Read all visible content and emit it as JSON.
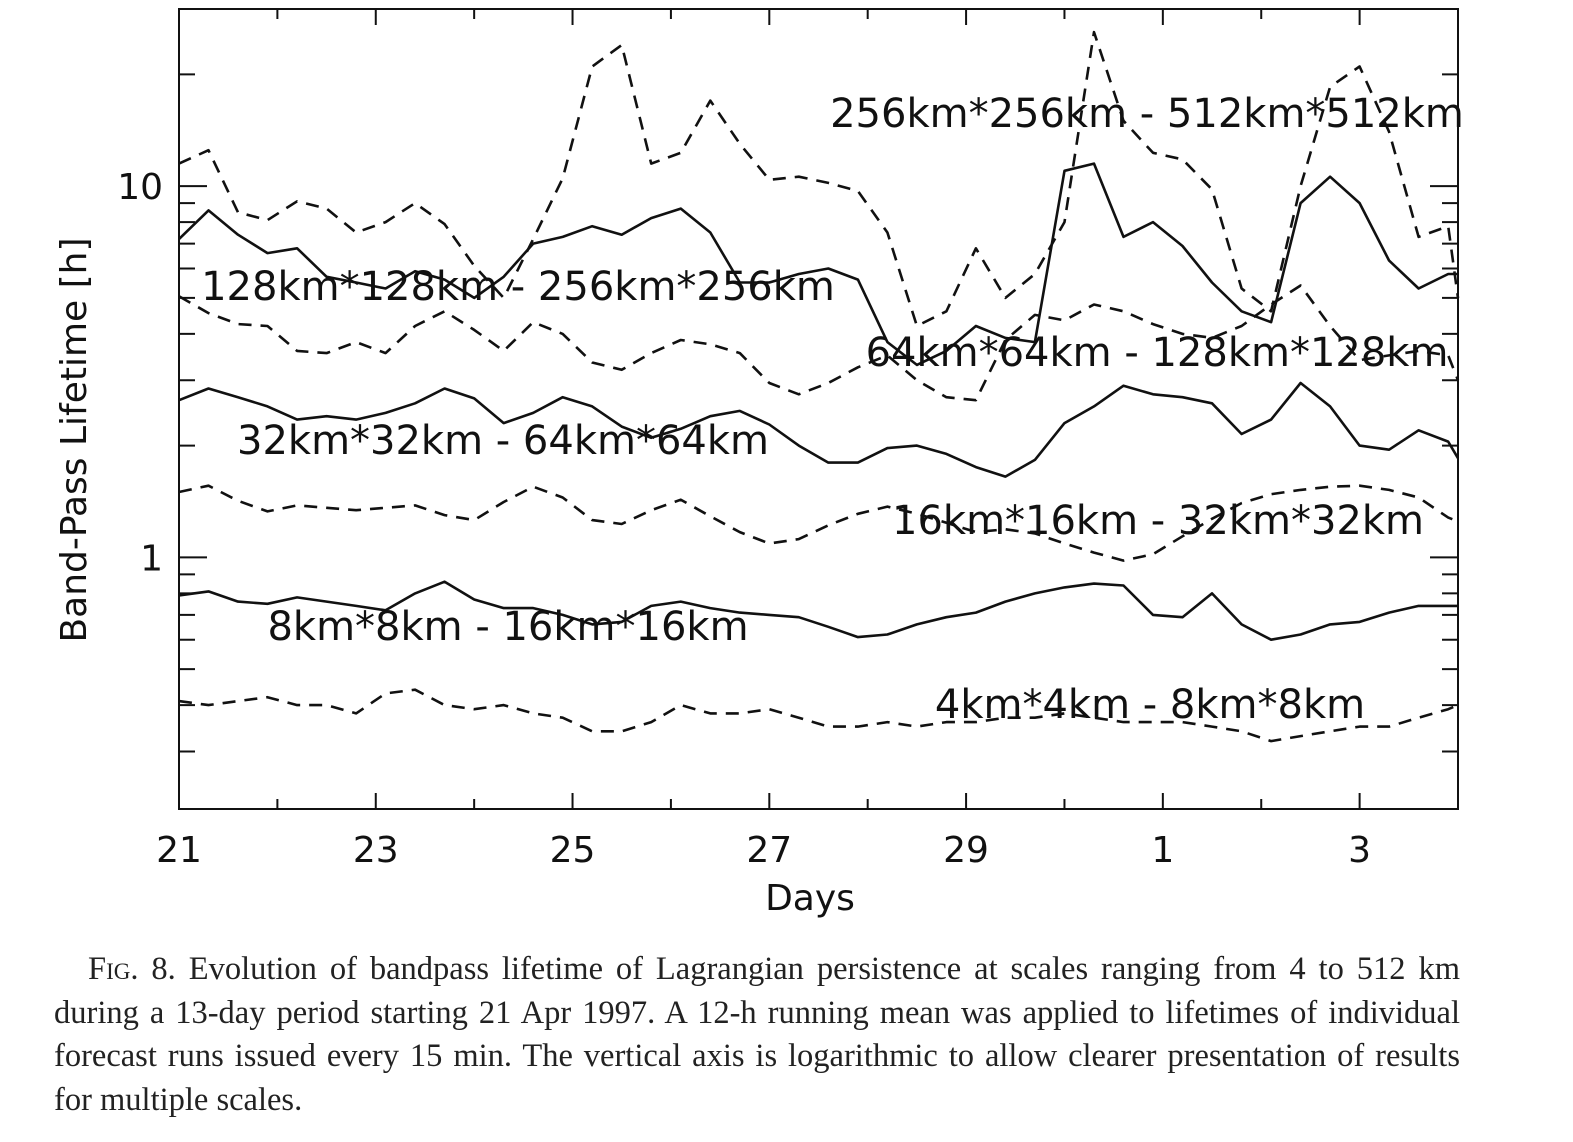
{
  "chart_data": {
    "type": "line",
    "xlabel": "Days",
    "ylabel": "Band-Pass Lifetime [h]",
    "yscale": "log",
    "ylim": [
      0.21,
      30
    ],
    "xlim": [
      0,
      13
    ],
    "x_ticks": [
      {
        "x": 0,
        "label": "21"
      },
      {
        "x": 2,
        "label": "23"
      },
      {
        "x": 4,
        "label": "25"
      },
      {
        "x": 6,
        "label": "27"
      },
      {
        "x": 8,
        "label": "29"
      },
      {
        "x": 10,
        "label": "1"
      },
      {
        "x": 12,
        "label": "3"
      }
    ],
    "y_ticks": [
      {
        "y": 1,
        "label": "1"
      },
      {
        "y": 10,
        "label": "10"
      }
    ],
    "legend_position": "inline labels next to curves",
    "grid": false,
    "series": [
      {
        "name": "4km*4km - 8km*8km",
        "style": "dashed",
        "x": [
          0,
          0.3,
          0.6,
          0.9,
          1.2,
          1.5,
          1.8,
          2.1,
          2.4,
          2.7,
          3.0,
          3.3,
          3.6,
          3.9,
          4.2,
          4.5,
          4.8,
          5.1,
          5.4,
          5.7,
          6.0,
          6.3,
          6.6,
          6.9,
          7.2,
          7.5,
          7.8,
          8.1,
          8.4,
          8.7,
          9.0,
          9.3,
          9.6,
          9.9,
          10.2,
          10.5,
          10.8,
          11.1,
          11.4,
          11.7,
          12.0,
          12.3,
          12.6,
          12.9,
          13.0
        ],
        "y": [
          0.41,
          0.4,
          0.41,
          0.42,
          0.4,
          0.4,
          0.38,
          0.43,
          0.44,
          0.4,
          0.39,
          0.4,
          0.38,
          0.37,
          0.34,
          0.34,
          0.36,
          0.4,
          0.38,
          0.38,
          0.39,
          0.37,
          0.35,
          0.35,
          0.36,
          0.35,
          0.36,
          0.36,
          0.37,
          0.37,
          0.38,
          0.37,
          0.36,
          0.36,
          0.36,
          0.35,
          0.34,
          0.32,
          0.33,
          0.34,
          0.35,
          0.35,
          0.37,
          0.39,
          0.4
        ]
      },
      {
        "name": "8km*8km - 16km*16km",
        "style": "solid",
        "x": [
          0,
          0.3,
          0.6,
          0.9,
          1.2,
          1.5,
          1.8,
          2.1,
          2.4,
          2.7,
          3.0,
          3.3,
          3.6,
          3.9,
          4.2,
          4.5,
          4.8,
          5.1,
          5.4,
          5.7,
          6.0,
          6.3,
          6.6,
          6.9,
          7.2,
          7.5,
          7.8,
          8.1,
          8.4,
          8.7,
          9.0,
          9.3,
          9.6,
          9.9,
          10.2,
          10.5,
          10.8,
          11.1,
          11.4,
          11.7,
          12.0,
          12.3,
          12.6,
          12.9,
          13.0
        ],
        "y": [
          0.79,
          0.81,
          0.76,
          0.75,
          0.78,
          0.76,
          0.74,
          0.72,
          0.8,
          0.86,
          0.77,
          0.73,
          0.73,
          0.7,
          0.66,
          0.67,
          0.74,
          0.76,
          0.73,
          0.71,
          0.7,
          0.69,
          0.65,
          0.61,
          0.62,
          0.66,
          0.69,
          0.71,
          0.76,
          0.8,
          0.83,
          0.85,
          0.84,
          0.7,
          0.69,
          0.8,
          0.66,
          0.6,
          0.62,
          0.66,
          0.67,
          0.71,
          0.74,
          0.74,
          0.74
        ]
      },
      {
        "name": "16km*16km - 32km*32km",
        "style": "dashed",
        "x": [
          0,
          0.3,
          0.6,
          0.9,
          1.2,
          1.5,
          1.8,
          2.1,
          2.4,
          2.7,
          3.0,
          3.3,
          3.6,
          3.9,
          4.2,
          4.5,
          4.8,
          5.1,
          5.4,
          5.7,
          6.0,
          6.3,
          6.6,
          6.9,
          7.2,
          7.5,
          7.8,
          8.1,
          8.4,
          8.7,
          9.0,
          9.3,
          9.6,
          9.9,
          10.2,
          10.5,
          10.8,
          11.1,
          11.4,
          11.7,
          12.0,
          12.3,
          12.6,
          12.9,
          13.0
        ],
        "y": [
          1.5,
          1.56,
          1.42,
          1.33,
          1.38,
          1.36,
          1.34,
          1.36,
          1.38,
          1.3,
          1.26,
          1.41,
          1.55,
          1.45,
          1.26,
          1.23,
          1.34,
          1.43,
          1.29,
          1.17,
          1.09,
          1.12,
          1.22,
          1.31,
          1.37,
          1.31,
          1.24,
          1.17,
          1.19,
          1.16,
          1.09,
          1.03,
          0.98,
          1.02,
          1.14,
          1.27,
          1.4,
          1.48,
          1.52,
          1.55,
          1.56,
          1.52,
          1.45,
          1.28,
          1.25
        ]
      },
      {
        "name": "32km*32km - 64km*64km",
        "style": "solid",
        "x": [
          0,
          0.3,
          0.6,
          0.9,
          1.2,
          1.5,
          1.8,
          2.1,
          2.4,
          2.7,
          3.0,
          3.3,
          3.6,
          3.9,
          4.2,
          4.5,
          4.8,
          5.1,
          5.4,
          5.7,
          6.0,
          6.3,
          6.6,
          6.9,
          7.2,
          7.5,
          7.8,
          8.1,
          8.4,
          8.7,
          9.0,
          9.3,
          9.6,
          9.9,
          10.2,
          10.5,
          10.8,
          11.1,
          11.4,
          11.7,
          12.0,
          12.3,
          12.6,
          12.9,
          13.0
        ],
        "y": [
          2.65,
          2.85,
          2.7,
          2.55,
          2.35,
          2.4,
          2.35,
          2.45,
          2.6,
          2.85,
          2.68,
          2.3,
          2.45,
          2.7,
          2.55,
          2.25,
          2.1,
          2.22,
          2.4,
          2.48,
          2.28,
          2.0,
          1.8,
          1.8,
          1.97,
          2.0,
          1.9,
          1.75,
          1.65,
          1.83,
          2.3,
          2.55,
          2.9,
          2.75,
          2.7,
          2.6,
          2.15,
          2.35,
          2.95,
          2.55,
          2.0,
          1.95,
          2.2,
          2.05,
          1.85
        ]
      },
      {
        "name": "64km*64km - 128km*128km",
        "style": "dashed",
        "x": [
          0,
          0.3,
          0.6,
          0.9,
          1.2,
          1.5,
          1.8,
          2.1,
          2.4,
          2.7,
          3.0,
          3.3,
          3.6,
          3.9,
          4.2,
          4.5,
          4.8,
          5.1,
          5.4,
          5.7,
          6.0,
          6.3,
          6.6,
          6.9,
          7.2,
          7.5,
          7.8,
          8.1,
          8.4,
          8.7,
          9.0,
          9.3,
          9.6,
          9.9,
          10.2,
          10.5,
          10.8,
          11.1,
          11.4,
          11.7,
          12.0,
          12.3,
          12.6,
          12.9,
          13.0
        ],
        "y": [
          5.05,
          4.55,
          4.25,
          4.2,
          3.6,
          3.55,
          3.8,
          3.55,
          4.2,
          4.6,
          4.1,
          3.6,
          4.3,
          4.0,
          3.35,
          3.2,
          3.55,
          3.85,
          3.75,
          3.55,
          2.95,
          2.75,
          2.95,
          3.25,
          3.5,
          3.0,
          2.7,
          2.65,
          3.85,
          4.5,
          4.35,
          4.8,
          4.6,
          4.25,
          4.0,
          3.9,
          4.2,
          4.8,
          5.4,
          4.2,
          3.4,
          3.5,
          3.6,
          3.5,
          3.0
        ]
      },
      {
        "name": "128km*128km - 256km*256km",
        "style": "solid",
        "x": [
          0,
          0.3,
          0.6,
          0.9,
          1.2,
          1.5,
          1.8,
          2.1,
          2.4,
          2.7,
          3.0,
          3.3,
          3.6,
          3.9,
          4.2,
          4.5,
          4.8,
          5.1,
          5.4,
          5.7,
          6.0,
          6.3,
          6.6,
          6.9,
          7.2,
          7.5,
          7.8,
          8.1,
          8.4,
          8.7,
          9.0,
          9.3,
          9.6,
          9.9,
          10.2,
          10.5,
          10.8,
          11.1,
          11.4,
          11.7,
          12.0,
          12.3,
          12.6,
          12.9,
          13.0
        ],
        "y": [
          7.2,
          8.6,
          7.4,
          6.6,
          6.8,
          5.7,
          5.5,
          5.3,
          5.9,
          5.6,
          5.0,
          5.7,
          7.0,
          7.3,
          7.8,
          7.4,
          8.2,
          8.7,
          7.5,
          5.5,
          5.5,
          5.8,
          6.0,
          5.6,
          3.8,
          3.3,
          3.6,
          4.2,
          3.9,
          3.8,
          11.0,
          11.5,
          7.3,
          8.0,
          6.9,
          5.5,
          4.6,
          4.3,
          9.0,
          10.6,
          9.0,
          6.3,
          5.3,
          5.8,
          5.8
        ]
      },
      {
        "name": "256km*256km - 512km*512km",
        "style": "dashed",
        "x": [
          0,
          0.3,
          0.6,
          0.9,
          1.2,
          1.5,
          1.8,
          2.1,
          2.4,
          2.7,
          3.0,
          3.3,
          3.6,
          3.9,
          4.2,
          4.5,
          4.8,
          5.1,
          5.4,
          5.7,
          6.0,
          6.3,
          6.6,
          6.9,
          7.2,
          7.5,
          7.8,
          8.1,
          8.4,
          8.7,
          9.0,
          9.3,
          9.6,
          9.9,
          10.2,
          10.5,
          10.8,
          11.1,
          11.4,
          11.7,
          12.0,
          12.3,
          12.6,
          12.9,
          13.0
        ],
        "y": [
          11.5,
          12.5,
          8.5,
          8.1,
          9.1,
          8.7,
          7.5,
          8.0,
          9.0,
          7.9,
          6.1,
          5.0,
          7.2,
          10.5,
          21.0,
          24.0,
          11.5,
          12.3,
          17.0,
          13.0,
          10.4,
          10.6,
          10.2,
          9.7,
          7.5,
          4.2,
          4.6,
          6.8,
          5.0,
          5.8,
          8.0,
          26.0,
          15.0,
          12.3,
          11.8,
          9.8,
          5.3,
          4.6,
          10.0,
          18.5,
          21.0,
          14.0,
          7.3,
          7.8,
          5.0
        ]
      }
    ]
  },
  "caption": {
    "fig_label": "Fig. 8.",
    "text": " Evolution of bandpass lifetime of Lagrangian persistence at scales ranging from 4 to 512 km during a 13-day period starting 21 Apr 1997. A 12-h running mean was applied to lifetimes of individual forecast runs issued every 15 min. The vertical axis is logarithmic to allow clearer presentation of results for multiple scales."
  }
}
